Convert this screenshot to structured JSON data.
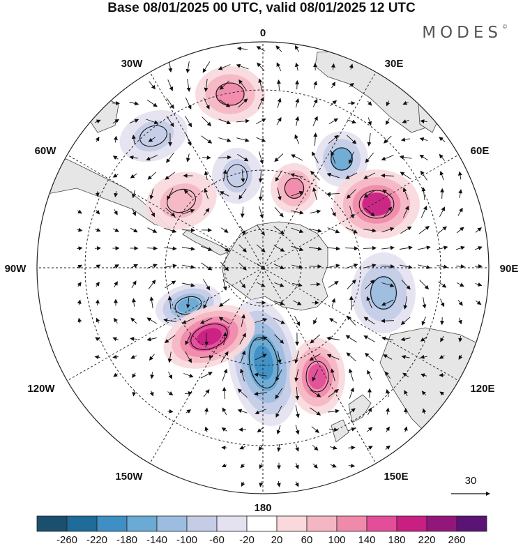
{
  "title": "Base 08/01/2025 00 UTC, valid 08/01/2025 12 UTC",
  "brand": "MODES",
  "brand_mark": "©",
  "meridian_labels": {
    "lon_0": "0",
    "lon_30e": "30E",
    "lon_60e": "60E",
    "lon_90e": "90E",
    "lon_120e": "120E",
    "lon_150e": "150E",
    "lon_180": "180",
    "lon_150w": "150W",
    "lon_120w": "120W",
    "lon_90w": "90W",
    "lon_60w": "60W",
    "lon_30w": "30W"
  },
  "reference_vector_label": "30",
  "colorbar": {
    "colors": [
      "#1a4f6e",
      "#1f6b99",
      "#3d8fc4",
      "#6aaad4",
      "#9cbde0",
      "#c4cce6",
      "#e4e2f0",
      "#ffffff",
      "#f9d9dc",
      "#f5b6c3",
      "#f08aab",
      "#e24e98",
      "#c81f82",
      "#93177b",
      "#5b1375"
    ],
    "tick_labels": [
      "-260",
      "-220",
      "-180",
      "-140",
      "-100",
      "-60",
      "-20",
      "20",
      "60",
      "100",
      "140",
      "180",
      "220",
      "260"
    ]
  },
  "anomaly_centers": [
    {
      "sign": "neg",
      "value": -200,
      "level": 3
    },
    {
      "sign": "neg",
      "value": -160,
      "level": 2
    },
    {
      "sign": "neg",
      "value": -140,
      "level": 1
    },
    {
      "sign": "neg",
      "value": -120,
      "level": 1
    },
    {
      "sign": "neg",
      "value": -80,
      "level": 0
    },
    {
      "sign": "neg",
      "value": -60,
      "level": 0
    },
    {
      "sign": "pos",
      "value": 200,
      "level": 3
    },
    {
      "sign": "pos",
      "value": 180,
      "level": 2
    },
    {
      "sign": "pos",
      "value": 140,
      "level": 2
    },
    {
      "sign": "pos",
      "value": 120,
      "level": 1
    },
    {
      "sign": "pos",
      "value": 100,
      "level": 1
    },
    {
      "sign": "pos",
      "value": 60,
      "level": 0
    }
  ],
  "colors": {
    "land": "#e6e6e6",
    "coast": "#444444",
    "arrow": "#111111",
    "grid": "#222222"
  }
}
